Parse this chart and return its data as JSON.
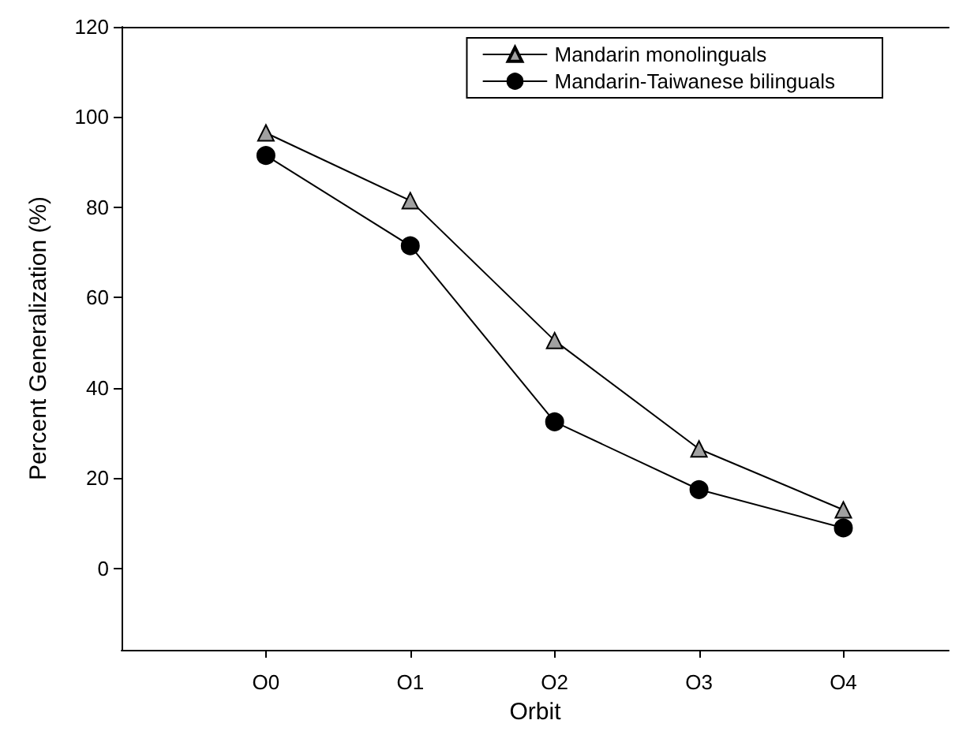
{
  "chart_data": {
    "type": "line",
    "xlabel": "Orbit",
    "ylabel": "Percent Generalization (%)",
    "categories": [
      "O0",
      "O1",
      "O2",
      "O3",
      "O4"
    ],
    "series": [
      {
        "name": "Mandarin monolinguals",
        "color": "#a0a0a0",
        "marker": "triangle",
        "values": [
          96.5,
          81.5,
          50.5,
          26.5,
          13
        ]
      },
      {
        "name": "Mandarin-Taiwanese bilinguals",
        "color": "#000000",
        "marker": "circle",
        "values": [
          91.5,
          71.5,
          32.5,
          17.5,
          9
        ]
      }
    ],
    "ylim": [
      -18,
      120
    ],
    "yticks": [
      0,
      20,
      40,
      60,
      80,
      100,
      120
    ],
    "grid": false,
    "legend": "top right",
    "line_style": "solid"
  }
}
